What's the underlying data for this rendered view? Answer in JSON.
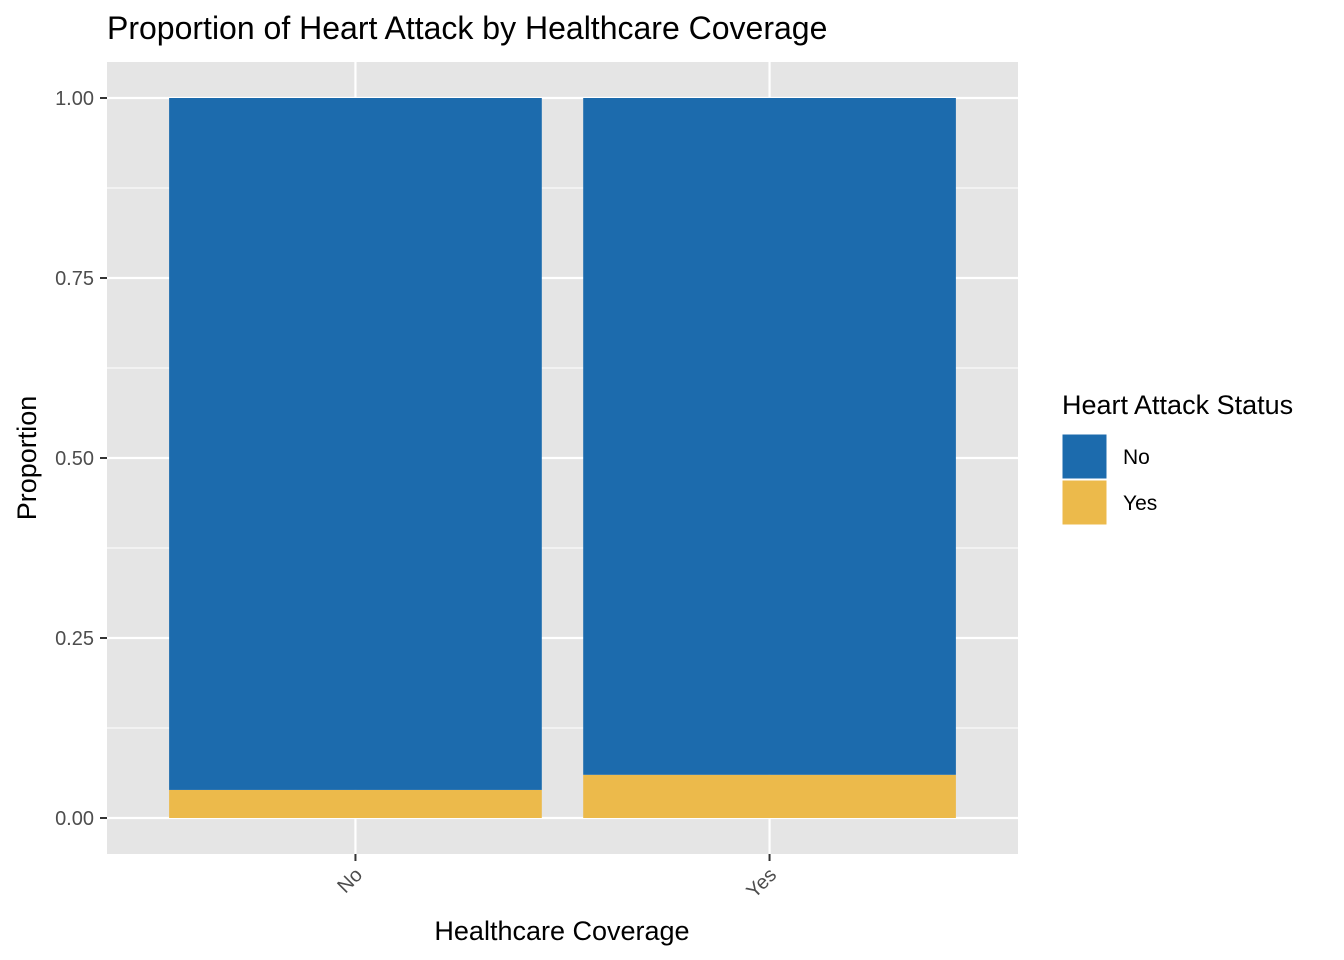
{
  "chart_data": {
    "type": "bar",
    "stacked": true,
    "title": "Proportion of Heart Attack by Healthcare Coverage",
    "xlabel": "Healthcare Coverage",
    "ylabel": "Proportion",
    "categories": [
      "No",
      "Yes"
    ],
    "ylim": [
      -0.05,
      1.05
    ],
    "yticks": [
      0.0,
      0.25,
      0.5,
      0.75,
      1.0
    ],
    "ytick_labels": [
      "0.00",
      "0.25",
      "0.50",
      "0.75",
      "1.00"
    ],
    "grid": true,
    "legend": {
      "title": "Heart Attack Status",
      "position": "right"
    },
    "series": [
      {
        "name": "Yes",
        "color": "#ECBA4B",
        "values": [
          0.039,
          0.06
        ]
      },
      {
        "name": "No",
        "color": "#1C6BAD",
        "values": [
          0.961,
          0.94
        ]
      }
    ],
    "legend_order": [
      "No",
      "Yes"
    ],
    "panel_background": "#E5E5E5",
    "grid_color": "#FFFFFF"
  }
}
